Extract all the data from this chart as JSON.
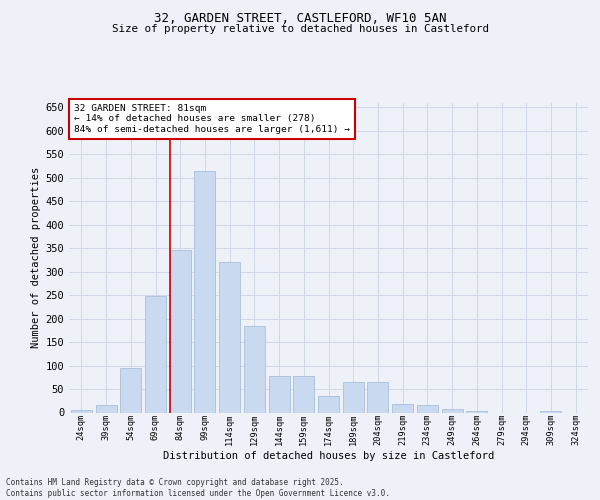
{
  "title_line1": "32, GARDEN STREET, CASTLEFORD, WF10 5AN",
  "title_line2": "Size of property relative to detached houses in Castleford",
  "xlabel": "Distribution of detached houses by size in Castleford",
  "ylabel": "Number of detached properties",
  "categories": [
    "24sqm",
    "39sqm",
    "54sqm",
    "69sqm",
    "84sqm",
    "99sqm",
    "114sqm",
    "129sqm",
    "144sqm",
    "159sqm",
    "174sqm",
    "189sqm",
    "204sqm",
    "219sqm",
    "234sqm",
    "249sqm",
    "264sqm",
    "279sqm",
    "294sqm",
    "309sqm",
    "324sqm"
  ],
  "values": [
    5,
    15,
    95,
    248,
    345,
    515,
    320,
    185,
    78,
    78,
    35,
    65,
    65,
    18,
    15,
    8,
    3,
    0,
    0,
    3,
    0
  ],
  "bar_color": "#c8d9f0",
  "bar_edge_color": "#a0b8d8",
  "grid_color": "#d0d8e8",
  "vline_color": "#cc0000",
  "annotation_text": "32 GARDEN STREET: 81sqm\n← 14% of detached houses are smaller (278)\n84% of semi-detached houses are larger (1,611) →",
  "annotation_box_color": "#ffffff",
  "annotation_box_edge": "#cc0000",
  "ylim": [
    0,
    660
  ],
  "yticks": [
    0,
    50,
    100,
    150,
    200,
    250,
    300,
    350,
    400,
    450,
    500,
    550,
    600,
    650
  ],
  "footer_line1": "Contains HM Land Registry data © Crown copyright and database right 2025.",
  "footer_line2": "Contains public sector information licensed under the Open Government Licence v3.0.",
  "bg_color": "#eef2f8"
}
